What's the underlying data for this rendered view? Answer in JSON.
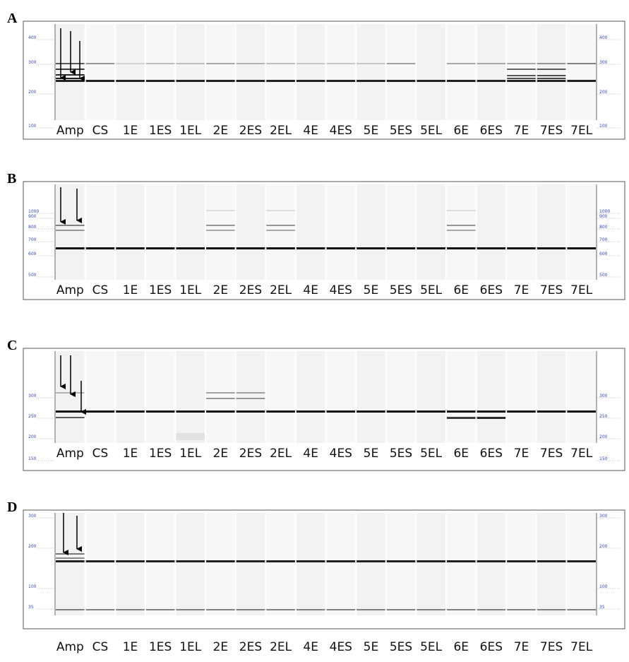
{
  "panels": [
    {
      "label": "A",
      "left_markers": [
        "400",
        "300",
        "200",
        "100"
      ],
      "right_markers": [
        "400",
        "300",
        "200",
        "100"
      ],
      "lanes": [
        "Amp",
        "CS",
        "1E",
        "1ES",
        "1EL",
        "2E",
        "2ES",
        "2EL",
        "4E",
        "4ES",
        "5E",
        "5ES",
        "5EL",
        "6E",
        "6ES",
        "7E",
        "7ES",
        "7EL"
      ]
    },
    {
      "label": "B",
      "left_markers": [
        "1000",
        "900",
        "800",
        "700",
        "600",
        "500"
      ],
      "right_markers": [
        "1000",
        "900",
        "800",
        "700",
        "600",
        "500"
      ],
      "lanes": [
        "Amp",
        "CS",
        "1E",
        "1ES",
        "1EL",
        "2E",
        "2ES",
        "2EL",
        "4E",
        "4ES",
        "5E",
        "5ES",
        "5EL",
        "6E",
        "6ES",
        "7E",
        "7ES",
        "7EL"
      ]
    },
    {
      "label": "C",
      "left_markers": [
        "300",
        "250",
        "200",
        "150"
      ],
      "right_markers": [
        "300",
        "250",
        "200",
        "150"
      ],
      "lanes": [
        "Amp",
        "CS",
        "1E",
        "1ES",
        "1EL",
        "2E",
        "2ES",
        "2EL",
        "4E",
        "4ES",
        "5E",
        "5ES",
        "5EL",
        "6E",
        "6ES",
        "7E",
        "7ES",
        "7EL"
      ]
    },
    {
      "label": "D",
      "left_markers": [
        "300",
        "200",
        "100",
        "35"
      ],
      "right_markers": [
        "300",
        "200",
        "100",
        "35"
      ],
      "lanes": [
        "Amp",
        "CS",
        "1E",
        "1ES",
        "1EL",
        "2E",
        "2ES",
        "2EL",
        "4E",
        "4ES",
        "5E",
        "5ES",
        "5EL",
        "6E",
        "6ES",
        "7E",
        "7ES",
        "7EL"
      ]
    }
  ]
}
